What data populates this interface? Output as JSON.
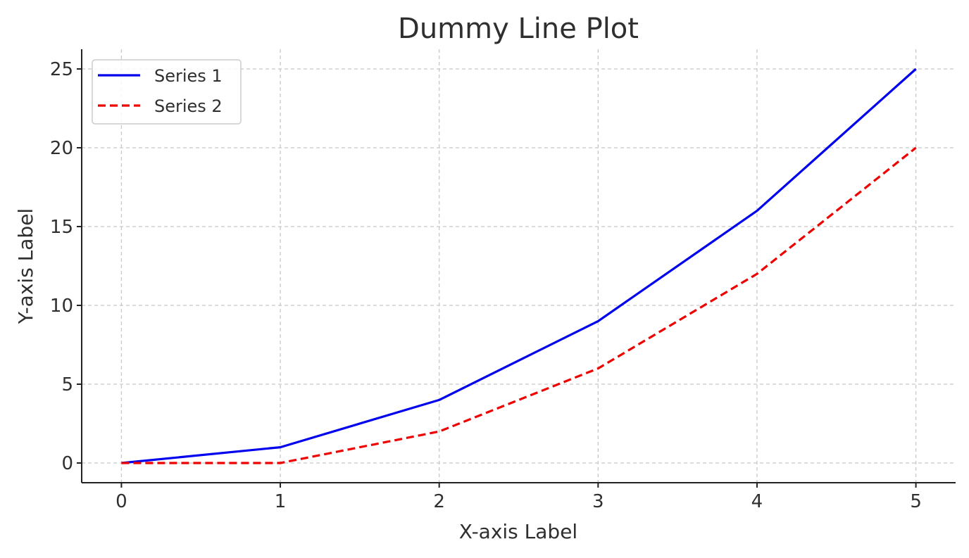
{
  "chart_data": {
    "type": "line",
    "title": "Dummy Line Plot",
    "xlabel": "X-axis Label",
    "ylabel": "Y-axis Label",
    "x": [
      0,
      1,
      2,
      3,
      4,
      5
    ],
    "xlim": [
      -0.25,
      5.25
    ],
    "ylim": [
      -1.25,
      26.25
    ],
    "xticks": [
      0,
      1,
      2,
      3,
      4,
      5
    ],
    "yticks": [
      0,
      5,
      10,
      15,
      20,
      25
    ],
    "grid": true,
    "legend_position": "top-left",
    "series": [
      {
        "name": "Series 1",
        "values": [
          0,
          1,
          4,
          9,
          16,
          25
        ],
        "color": "#0000ee",
        "style": "solid"
      },
      {
        "name": "Series 2",
        "values": [
          0,
          0,
          2,
          6,
          12,
          20
        ],
        "color": "#ee0000",
        "style": "dashed"
      }
    ]
  }
}
